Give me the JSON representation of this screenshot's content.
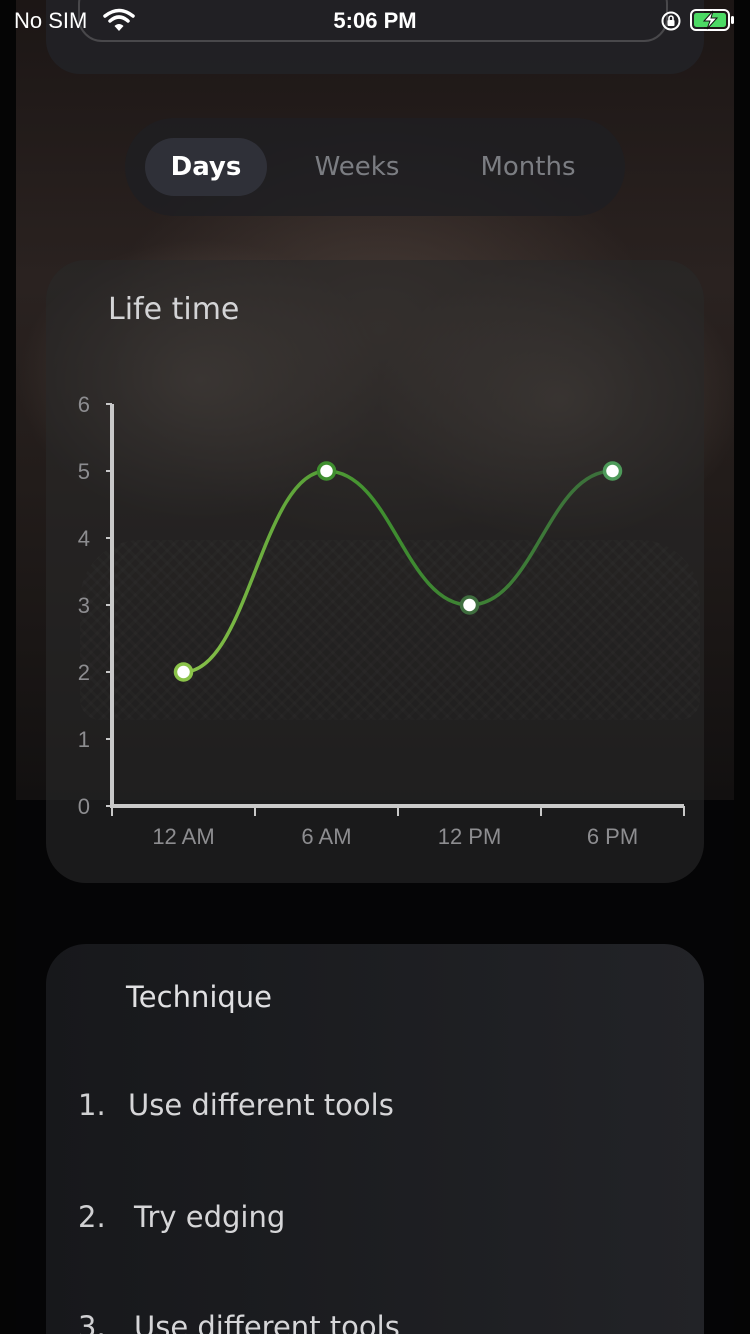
{
  "status_bar": {
    "carrier": "No SIM",
    "time": "5:06 PM"
  },
  "segment": {
    "tabs": [
      "Days",
      "Weeks",
      "Months"
    ],
    "active": "Days"
  },
  "chart_card": {
    "title": "Life time"
  },
  "chart_data": {
    "type": "line",
    "categories": [
      "12 AM",
      "6 AM",
      "12 PM",
      "6 PM"
    ],
    "series": [
      {
        "values": [
          2,
          5,
          3,
          5
        ]
      }
    ],
    "y_ticks": [
      "0",
      "1",
      "2",
      "3",
      "4",
      "5",
      "6"
    ],
    "ylim": [
      0,
      6
    ],
    "smooth": true,
    "line_color_start": "#8bc34a",
    "line_color_end": "#3c6e3c",
    "point_fill": "#ffffff",
    "grid": false
  },
  "technique": {
    "title": "Technique",
    "items": [
      {
        "num": "1.",
        "label": "Use different tools"
      },
      {
        "num": "2.",
        "label": "Try edging"
      },
      {
        "num": "3.",
        "label": "Use different tools"
      }
    ]
  }
}
